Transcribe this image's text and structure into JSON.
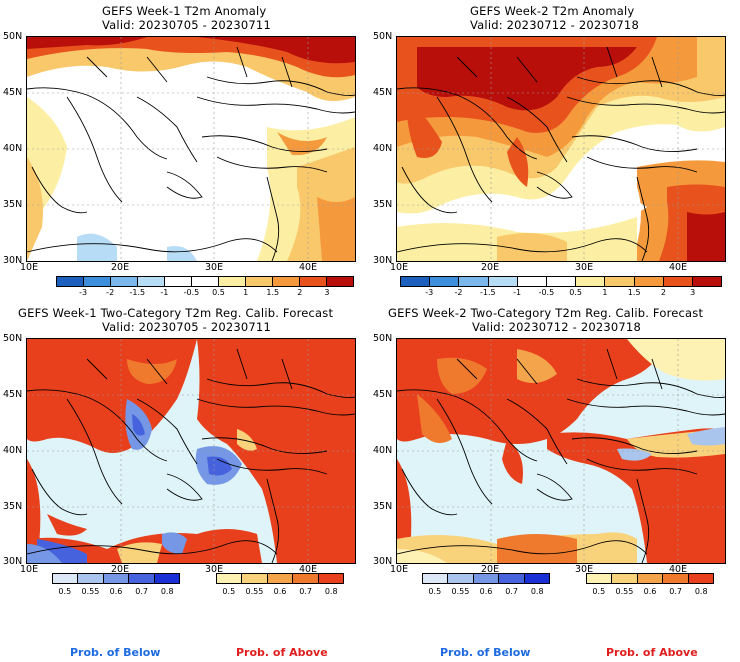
{
  "panels": [
    {
      "title": "GEFS Week-1 T2m Anomaly",
      "valid": "Valid: 20230705 - 20230711"
    },
    {
      "title": "GEFS Week-2 T2m Anomaly",
      "valid": "Valid: 20230712 - 20230718"
    },
    {
      "title": "GEFS Week-1 Two-Category T2m Reg. Calib. Forecast",
      "valid": "Valid: 20230705 - 20230711"
    },
    {
      "title": "GEFS Week-2 Two-Category T2m Reg. Calib. Forecast",
      "valid": "Valid: 20230712 - 20230718"
    }
  ],
  "lat_ticks": [
    "50N",
    "45N",
    "40N",
    "35N",
    "30N"
  ],
  "lon_ticks": [
    "10E",
    "20E",
    "30E",
    "40E"
  ],
  "anomaly_colorbar": {
    "labels": [
      "-3",
      "-2",
      "-1.5",
      "-1",
      "-0.5",
      "0.5",
      "1",
      "1.5",
      "2",
      "3"
    ],
    "colors": [
      "#1c5fbd",
      "#3d8fdc",
      "#7ab8ec",
      "#b7dcf6",
      "#ffffff",
      "#ffffff",
      "#fcefa4",
      "#f9c86b",
      "#f49a3c",
      "#e8531d",
      "#b80f0a"
    ]
  },
  "below_colorbar": {
    "labels": [
      "0.5",
      "0.55",
      "0.6",
      "0.7",
      "0.8"
    ],
    "colors": [
      "#dce8f6",
      "#a9c5ee",
      "#7597e6",
      "#4663dd",
      "#1b2fd6"
    ]
  },
  "above_colorbar": {
    "labels": [
      "0.5",
      "0.55",
      "0.6",
      "0.7",
      "0.8"
    ],
    "colors": [
      "#fdf1b4",
      "#f9d27c",
      "#f4a54c",
      "#ef7a2e",
      "#e8401c"
    ]
  },
  "prob_labels": {
    "below": "Prob. of Below",
    "above": "Prob. of Above",
    "below_color": "#1e6be0",
    "above_color": "#e01e1e"
  },
  "map_colors": {
    "sea_light": "#dff4f8",
    "land_light": "#fdf1b4",
    "border": "#000000"
  }
}
